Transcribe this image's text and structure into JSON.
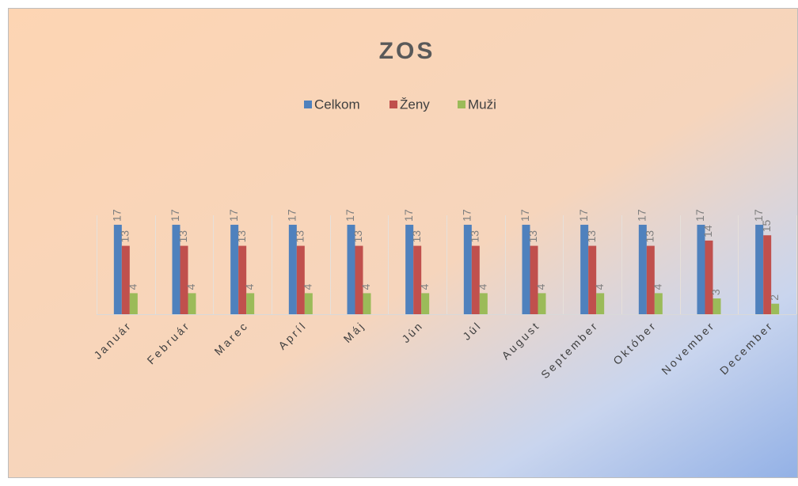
{
  "chart_data": {
    "type": "bar",
    "title": "ZOS",
    "categories": [
      "Január",
      "Február",
      "Marec",
      "Apríl",
      "Máj",
      "Jún",
      "Júl",
      "August",
      "September",
      "Október",
      "November",
      "December"
    ],
    "series": [
      {
        "name": "Celkom",
        "color": "#4f81bd",
        "values": [
          17,
          17,
          17,
          17,
          17,
          17,
          17,
          17,
          17,
          17,
          17,
          17
        ]
      },
      {
        "name": "Ženy",
        "color": "#c0504d",
        "values": [
          13,
          13,
          13,
          13,
          13,
          13,
          13,
          13,
          13,
          13,
          14,
          15
        ]
      },
      {
        "name": "Muži",
        "color": "#9bbb59",
        "values": [
          4,
          4,
          4,
          4,
          4,
          4,
          4,
          4,
          4,
          4,
          3,
          2
        ]
      }
    ],
    "ylim": [
      0,
      20
    ],
    "legend": "top",
    "data_labels": true
  }
}
